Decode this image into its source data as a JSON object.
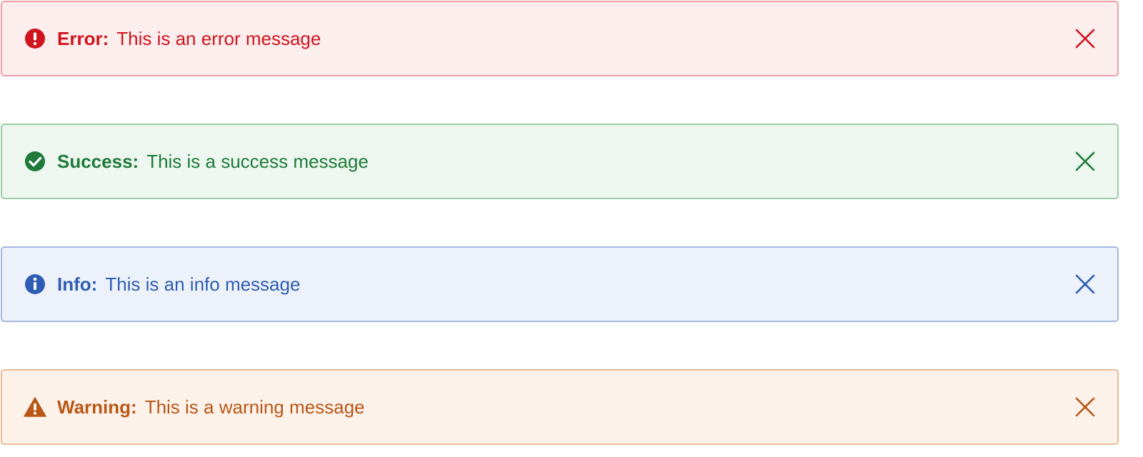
{
  "colors": {
    "error": "#d0141e",
    "success": "#1f7a3a",
    "info": "#2f5db3",
    "warning": "#b95716"
  },
  "alerts": [
    {
      "type": "error",
      "icon": "exclamation-circle-icon",
      "title": "Error:",
      "message": "This is an error message",
      "close_icon": "close-icon"
    },
    {
      "type": "success",
      "icon": "check-circle-icon",
      "title": "Success:",
      "message": "This is a success message",
      "close_icon": "close-icon"
    },
    {
      "type": "info",
      "icon": "info-circle-icon",
      "title": "Info:",
      "message": "This is an info message",
      "close_icon": "close-icon"
    },
    {
      "type": "warning",
      "icon": "warning-triangle-icon",
      "title": "Warning:",
      "message": "This is a warning message",
      "close_icon": "close-icon"
    }
  ]
}
